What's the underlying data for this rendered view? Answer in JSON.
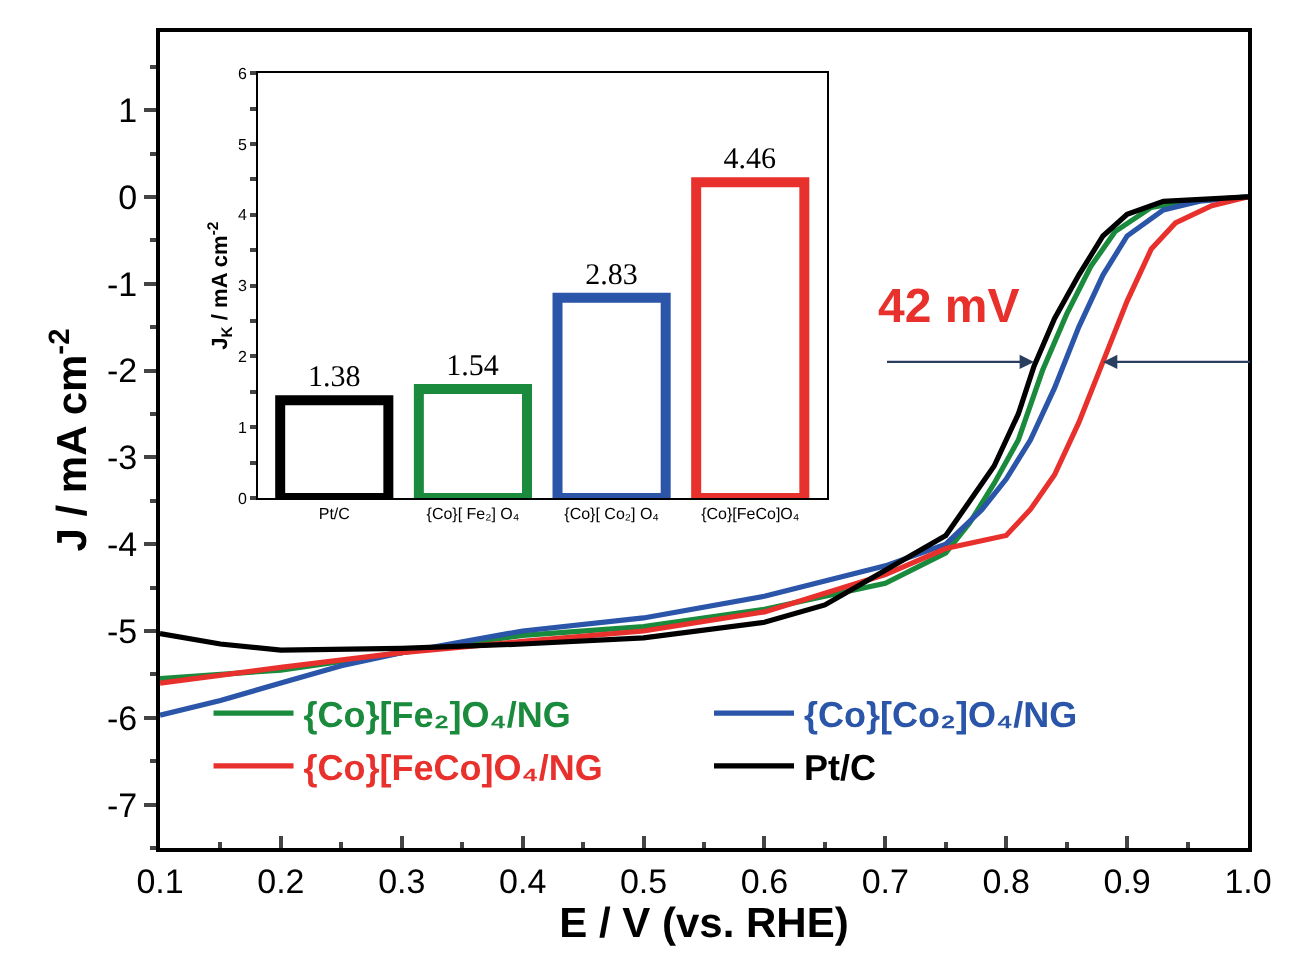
{
  "chart_data": [
    {
      "type": "line",
      "xlabel": "E / V (vs. RHE)",
      "ylabel": "J / mA cm$^{-2}$",
      "xlim": [
        0.1,
        1.0
      ],
      "ylim": [
        -7.5,
        1.9
      ],
      "xticks": [
        0.1,
        0.2,
        0.3,
        0.4,
        0.5,
        0.6,
        0.7,
        0.8,
        0.9,
        {
          "value": 1.0,
          "label": "1.0"
        }
      ],
      "yticks": [
        -7,
        -6,
        -5,
        -4,
        -3,
        -2,
        -1,
        0,
        1
      ],
      "legend": "bottom",
      "marker": "none",
      "line_style": "solid",
      "annotations": [
        {
          "text": "42 mV",
          "x": 0.823,
          "y": -1.9
        }
      ],
      "series": [
        {
          "name": "{Co}[Fe₂]O₄/NG",
          "color": "#1a8a3c",
          "x": [
            0.1,
            0.2,
            0.3,
            0.4,
            0.5,
            0.6,
            0.7,
            0.75,
            0.77,
            0.79,
            0.81,
            0.83,
            0.85,
            0.87,
            0.89,
            0.92,
            0.95,
            1.0
          ],
          "values": [
            -5.55,
            -5.45,
            -5.25,
            -5.05,
            -4.95,
            -4.75,
            -4.45,
            -4.1,
            -3.75,
            -3.3,
            -2.8,
            -2.0,
            -1.35,
            -0.8,
            -0.4,
            -0.12,
            -0.05,
            0.0
          ]
        },
        {
          "name": "{Co}[Co₂]O₄/NG",
          "color": "#2a55a8",
          "x": [
            0.1,
            0.15,
            0.2,
            0.25,
            0.3,
            0.4,
            0.5,
            0.6,
            0.7,
            0.75,
            0.78,
            0.8,
            0.82,
            0.84,
            0.86,
            0.88,
            0.9,
            0.93,
            0.96,
            1.0
          ],
          "values": [
            -5.97,
            -5.8,
            -5.6,
            -5.4,
            -5.25,
            -5.0,
            -4.85,
            -4.6,
            -4.25,
            -4.0,
            -3.6,
            -3.25,
            -2.8,
            -2.2,
            -1.5,
            -0.9,
            -0.45,
            -0.15,
            -0.05,
            0.0
          ]
        },
        {
          "name": "{Co}[FeCo]O₄/NG",
          "color": "#e8302c",
          "x": [
            0.1,
            0.2,
            0.3,
            0.4,
            0.5,
            0.6,
            0.7,
            0.75,
            0.8,
            0.82,
            0.84,
            0.86,
            0.88,
            0.9,
            0.92,
            0.94,
            0.97,
            1.0
          ],
          "values": [
            -5.6,
            -5.42,
            -5.25,
            -5.12,
            -5.0,
            -4.78,
            -4.35,
            -4.05,
            -3.9,
            -3.6,
            -3.2,
            -2.6,
            -1.9,
            -1.2,
            -0.6,
            -0.3,
            -0.1,
            0.0
          ]
        },
        {
          "name": "Pt/C",
          "color": "#000000",
          "x": [
            0.1,
            0.15,
            0.2,
            0.3,
            0.4,
            0.5,
            0.6,
            0.65,
            0.7,
            0.75,
            0.77,
            0.79,
            0.81,
            0.823,
            0.84,
            0.86,
            0.88,
            0.9,
            0.93,
            1.0
          ],
          "values": [
            -5.03,
            -5.15,
            -5.22,
            -5.2,
            -5.15,
            -5.08,
            -4.9,
            -4.7,
            -4.3,
            -3.9,
            -3.5,
            -3.1,
            -2.5,
            -1.95,
            -1.4,
            -0.9,
            -0.45,
            -0.2,
            -0.05,
            0.0
          ]
        }
      ]
    },
    {
      "type": "bar",
      "ylabel": "J$_{K}$ / mA cm$^{-2}$",
      "categories": [
        "Pt/C",
        "{Co}[ Fe₂] O₄",
        "{Co}[ Co₂] O₄",
        "{Co}[FeCo]O₄"
      ],
      "values": [
        1.38,
        1.54,
        2.83,
        4.46
      ],
      "colors": [
        "#000000",
        "#1a8a3c",
        "#2a55a8",
        "#e8302c"
      ],
      "ylim": [
        0,
        6
      ],
      "yticks": [
        0,
        1,
        2,
        3,
        4,
        5,
        6
      ],
      "data_labels": true
    }
  ]
}
